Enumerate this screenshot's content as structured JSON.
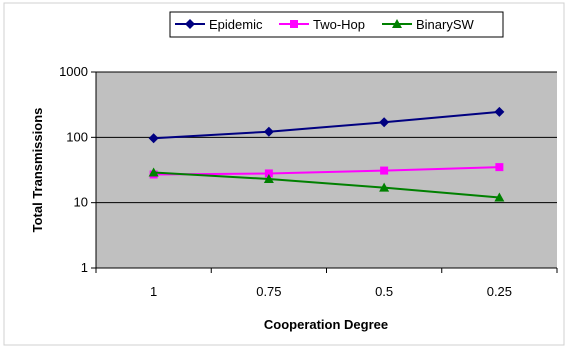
{
  "chart_data": {
    "type": "line",
    "title": "",
    "xlabel": "Cooperation Degree",
    "ylabel": "Total Transmissions",
    "categories": [
      "1",
      "0.75",
      "0.5",
      "0.25"
    ],
    "y_scale": "log",
    "ylim": [
      1,
      1000
    ],
    "y_ticks": [
      1,
      10,
      100,
      1000
    ],
    "y_tick_labels": [
      "1",
      "10",
      "100",
      "1000"
    ],
    "grid": "horizontal",
    "legend_position": "top",
    "plot_background": "#c0c0c0",
    "series": [
      {
        "name": "Epidemic",
        "values": [
          97,
          122,
          170,
          245
        ],
        "color": "#000080",
        "marker": "diamond"
      },
      {
        "name": "Two-Hop",
        "values": [
          27,
          28,
          31,
          35
        ],
        "color": "#ff00ff",
        "marker": "square"
      },
      {
        "name": "BinarySW",
        "values": [
          29,
          23,
          17,
          12
        ],
        "color": "#008000",
        "marker": "triangle"
      }
    ]
  }
}
